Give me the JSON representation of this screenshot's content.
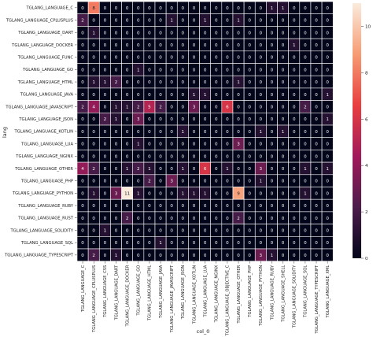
{
  "chart_data": {
    "type": "heatmap",
    "xlabel": "col_0",
    "ylabel": "lang",
    "rows": [
      "TGLANG_LANGUAGE_C",
      "TGLANG_LANGUAGE_CPLUSPLUS",
      "TGLANG_LANGUAGE_DART",
      "TGLANG_LANGUAGE_DOCKER",
      "TGLANG_LANGUAGE_FUNC",
      "TGLANG_LANGUAGE_GO",
      "TGLANG_LANGUAGE_HTML",
      "TGLANG_LANGUAGE_JAVA",
      "TGLANG_LANGUAGE_JAVASCRIPT",
      "TGLANG_LANGUAGE_JSON",
      "TGLANG_LANGUAGE_KOTLIN",
      "TGLANG_LANGUAGE_LUA",
      "TGLANG_LANGUAGE_NGINX",
      "TGLANG_LANGUAGE_OTHER",
      "TGLANG_LANGUAGE_PHP",
      "TGLANG_LANGUAGE_PYTHON",
      "TGLANG_LANGUAGE_RUBY",
      "TGLANG_LANGUAGE_RUST",
      "TGLANG_LANGUAGE_SOLIDITY",
      "TGLANG_LANGUAGE_SQL",
      "TGLANG_LANGUAGE_TYPESCRIPT"
    ],
    "columns": [
      "TGLANG_LANGUAGE_C",
      "TGLANG_LANGUAGE_CPLUSPLUS",
      "TGLANG_LANGUAGE_CSS",
      "TGLANG_LANGUAGE_DART",
      "TGLANG_LANGUAGE_DOCKER",
      "TGLANG_LANGUAGE_GO",
      "TGLANG_LANGUAGE_HTML",
      "TGLANG_LANGUAGE_JAVA",
      "TGLANG_LANGUAGE_JAVASCRIPT",
      "TGLANG_LANGUAGE_JSON",
      "TGLANG_LANGUAGE_KOTLIN",
      "TGLANG_LANGUAGE_LUA",
      "TGLANG_LANGUAGE_NGINX",
      "TGLANG_LANGUAGE_OBJECTIVE_C",
      "TGLANG_LANGUAGE_OTHER",
      "TGLANG_LANGUAGE_PHP",
      "TGLANG_LANGUAGE_PYTHON",
      "TGLANG_LANGUAGE_RUBY",
      "TGLANG_LANGUAGE_SHELL",
      "TGLANG_LANGUAGE_SOLIDITY",
      "TGLANG_LANGUAGE_SQL",
      "TGLANG_LANGUAGE_TYPESCRIPT",
      "TGLANG_LANGUAGE_XML"
    ],
    "values": [
      [
        0,
        8,
        0,
        0,
        0,
        0,
        0,
        0,
        0,
        0,
        0,
        0,
        0,
        0,
        0,
        0,
        0,
        1,
        1,
        0,
        0,
        0,
        0
      ],
      [
        2,
        0,
        0,
        0,
        0,
        0,
        0,
        0,
        1,
        0,
        0,
        1,
        0,
        0,
        1,
        0,
        0,
        0,
        0,
        0,
        0,
        0,
        0
      ],
      [
        0,
        1,
        0,
        0,
        0,
        0,
        0,
        0,
        0,
        0,
        0,
        0,
        0,
        0,
        0,
        0,
        0,
        0,
        0,
        0,
        0,
        0,
        0
      ],
      [
        0,
        0,
        0,
        0,
        0,
        0,
        0,
        0,
        0,
        0,
        0,
        0,
        0,
        0,
        0,
        0,
        0,
        0,
        0,
        1,
        0,
        0,
        0
      ],
      [
        0,
        0,
        0,
        0,
        0,
        0,
        0,
        0,
        0,
        0,
        0,
        0,
        0,
        0,
        0,
        0,
        0,
        0,
        0,
        0,
        0,
        0,
        0
      ],
      [
        0,
        0,
        0,
        0,
        0,
        1,
        0,
        0,
        0,
        0,
        0,
        0,
        0,
        0,
        0,
        0,
        0,
        0,
        0,
        0,
        0,
        0,
        0
      ],
      [
        0,
        1,
        1,
        2,
        0,
        0,
        0,
        0,
        0,
        0,
        0,
        0,
        0,
        0,
        1,
        0,
        0,
        0,
        0,
        0,
        0,
        0,
        0
      ],
      [
        0,
        0,
        0,
        0,
        0,
        0,
        0,
        0,
        0,
        0,
        1,
        1,
        0,
        0,
        0,
        0,
        0,
        0,
        0,
        0,
        0,
        0,
        1
      ],
      [
        2,
        4,
        0,
        1,
        1,
        2,
        5,
        2,
        0,
        0,
        3,
        0,
        0,
        6,
        0,
        0,
        0,
        0,
        0,
        0,
        2,
        0,
        0
      ],
      [
        0,
        0,
        2,
        1,
        0,
        3,
        0,
        0,
        0,
        0,
        0,
        0,
        0,
        0,
        0,
        0,
        0,
        0,
        0,
        0,
        0,
        0,
        1
      ],
      [
        0,
        0,
        0,
        0,
        0,
        0,
        0,
        0,
        0,
        1,
        0,
        0,
        0,
        0,
        0,
        0,
        1,
        0,
        1,
        0,
        0,
        0,
        0
      ],
      [
        0,
        0,
        0,
        0,
        0,
        1,
        0,
        0,
        0,
        0,
        0,
        0,
        0,
        0,
        3,
        0,
        0,
        0,
        0,
        0,
        0,
        0,
        0
      ],
      [
        0,
        0,
        0,
        0,
        0,
        0,
        0,
        0,
        0,
        0,
        0,
        0,
        0,
        0,
        0,
        0,
        0,
        0,
        0,
        0,
        0,
        0,
        0
      ],
      [
        4,
        2,
        0,
        0,
        1,
        2,
        1,
        0,
        0,
        1,
        0,
        6,
        0,
        1,
        0,
        0,
        3,
        0,
        0,
        0,
        1,
        0,
        1
      ],
      [
        0,
        0,
        0,
        0,
        0,
        0,
        2,
        0,
        3,
        0,
        0,
        0,
        0,
        0,
        0,
        0,
        1,
        0,
        0,
        0,
        0,
        0,
        0
      ],
      [
        0,
        1,
        0,
        3,
        11,
        1,
        0,
        0,
        0,
        1,
        1,
        1,
        0,
        0,
        9,
        0,
        0,
        0,
        0,
        0,
        1,
        0,
        0
      ],
      [
        0,
        0,
        0,
        0,
        0,
        0,
        0,
        0,
        0,
        0,
        0,
        0,
        0,
        0,
        0,
        0,
        0,
        0,
        0,
        0,
        0,
        0,
        0
      ],
      [
        0,
        0,
        0,
        0,
        2,
        0,
        0,
        0,
        0,
        0,
        0,
        0,
        0,
        0,
        2,
        0,
        0,
        0,
        0,
        0,
        0,
        0,
        0
      ],
      [
        0,
        0,
        1,
        0,
        0,
        0,
        0,
        0,
        0,
        0,
        0,
        0,
        0,
        0,
        0,
        0,
        0,
        0,
        0,
        0,
        0,
        0,
        0
      ],
      [
        0,
        0,
        0,
        0,
        0,
        0,
        0,
        1,
        0,
        0,
        0,
        0,
        0,
        0,
        0,
        0,
        0,
        0,
        0,
        0,
        0,
        0,
        0
      ],
      [
        0,
        2,
        0,
        1,
        0,
        0,
        0,
        0,
        0,
        0,
        0,
        0,
        0,
        0,
        0,
        0,
        3,
        1,
        0,
        0,
        0,
        0,
        0
      ]
    ],
    "colorbar": {
      "min": 0,
      "max": 11,
      "ticks": [
        0,
        2,
        4,
        6,
        8,
        10
      ]
    },
    "colormap": [
      "#03051a",
      "#4c1d4b",
      "#a11a5b",
      "#e83f3f",
      "#f69c73",
      "#faebdd"
    ]
  }
}
